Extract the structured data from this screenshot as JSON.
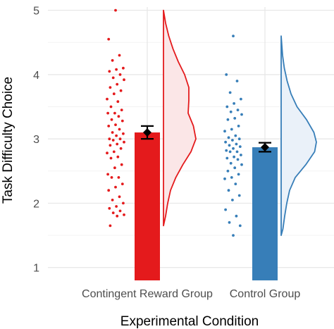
{
  "chart_data": {
    "type": "raincloud-bar",
    "xlabel": "Experimental Condition",
    "ylabel": "Task Difficulty Choice",
    "ylim": [
      0.8,
      5.05
    ],
    "yticks": [
      1,
      2,
      3,
      4,
      5
    ],
    "grid": true,
    "categories": [
      "Contingent Reward Group",
      "Control Group"
    ],
    "groups": [
      {
        "category": "Contingent Reward Group",
        "color": "#e41a1c",
        "fill": "#fbe6e7",
        "bar_value": 3.1,
        "mean": 3.1,
        "error": [
          3.0,
          3.2
        ],
        "points": [
          5.0,
          4.55,
          4.3,
          4.22,
          4.1,
          4.08,
          4.05,
          4.0,
          3.95,
          3.92,
          3.85,
          3.8,
          3.75,
          3.7,
          3.62,
          3.58,
          3.5,
          3.45,
          3.4,
          3.4,
          3.35,
          3.3,
          3.28,
          3.22,
          3.2,
          3.15,
          3.1,
          3.08,
          3.05,
          3.0,
          3.0,
          2.98,
          2.95,
          2.92,
          2.9,
          2.85,
          2.8,
          2.78,
          2.72,
          2.7,
          2.6,
          2.55,
          2.45,
          2.4,
          2.4,
          2.3,
          2.25,
          2.2,
          2.1,
          2.05,
          2.0,
          1.95,
          1.92,
          1.88,
          1.85,
          1.82,
          1.8,
          1.65
        ],
        "density": [
          [
            1.65,
            0.0
          ],
          [
            1.8,
            0.06
          ],
          [
            2.0,
            0.12
          ],
          [
            2.2,
            0.2
          ],
          [
            2.4,
            0.35
          ],
          [
            2.6,
            0.55
          ],
          [
            2.8,
            0.78
          ],
          [
            3.0,
            0.92
          ],
          [
            3.2,
            0.85
          ],
          [
            3.4,
            0.7
          ],
          [
            3.6,
            0.72
          ],
          [
            3.8,
            0.72
          ],
          [
            4.0,
            0.6
          ],
          [
            4.2,
            0.42
          ],
          [
            4.4,
            0.27
          ],
          [
            4.6,
            0.15
          ],
          [
            4.8,
            0.06
          ],
          [
            5.0,
            0.0
          ]
        ]
      },
      {
        "category": "Control Group",
        "color": "#377eb8",
        "fill": "#eaf1f9",
        "bar_value": 2.87,
        "mean": 2.87,
        "error": [
          2.8,
          2.94
        ],
        "points": [
          4.6,
          4.0,
          3.9,
          3.72,
          3.62,
          3.55,
          3.5,
          3.45,
          3.42,
          3.38,
          3.32,
          3.3,
          3.2,
          3.15,
          3.12,
          3.05,
          3.02,
          3.0,
          2.98,
          2.95,
          2.92,
          2.9,
          2.88,
          2.85,
          2.82,
          2.8,
          2.8,
          2.75,
          2.72,
          2.7,
          2.68,
          2.62,
          2.6,
          2.55,
          2.5,
          2.45,
          2.4,
          2.38,
          2.3,
          2.2,
          2.12,
          2.05,
          1.9,
          1.8,
          1.7,
          1.65,
          1.5
        ],
        "density": [
          [
            1.5,
            0.0
          ],
          [
            1.6,
            0.05
          ],
          [
            1.8,
            0.1
          ],
          [
            2.0,
            0.16
          ],
          [
            2.2,
            0.24
          ],
          [
            2.4,
            0.4
          ],
          [
            2.6,
            0.7
          ],
          [
            2.8,
            0.95
          ],
          [
            2.95,
            1.0
          ],
          [
            3.1,
            0.93
          ],
          [
            3.3,
            0.72
          ],
          [
            3.5,
            0.45
          ],
          [
            3.7,
            0.28
          ],
          [
            3.9,
            0.17
          ],
          [
            4.1,
            0.09
          ],
          [
            4.3,
            0.04
          ],
          [
            4.45,
            0.02
          ],
          [
            4.6,
            0.0
          ]
        ]
      }
    ]
  }
}
